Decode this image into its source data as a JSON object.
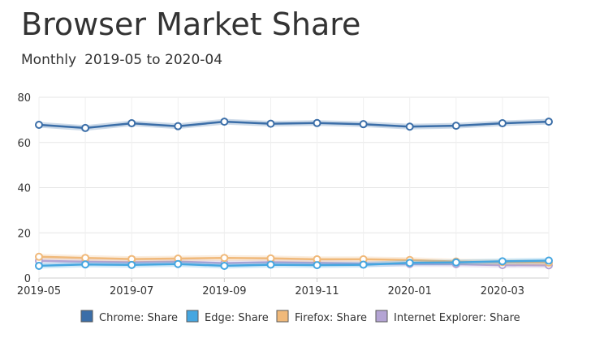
{
  "title": "Browser Market Share",
  "subtitle": {
    "period": "Monthly",
    "from": "2019-05",
    "to_word": "to",
    "to": "2020-04"
  },
  "chart_data": {
    "type": "line",
    "title": "Browser Market Share",
    "x": [
      "2019-05",
      "2019-06",
      "2019-07",
      "2019-08",
      "2019-09",
      "2019-10",
      "2019-11",
      "2019-12",
      "2020-01",
      "2020-02",
      "2020-03",
      "2020-04"
    ],
    "x_tick_labels": [
      "2019-05",
      "2019-07",
      "2019-09",
      "2019-11",
      "2020-01",
      "2020-03"
    ],
    "ylim": [
      0,
      80
    ],
    "y_ticks": [
      0,
      20,
      40,
      60,
      80
    ],
    "grid": true,
    "legend_position": "bottom",
    "series": [
      {
        "name": "Chrome: Share",
        "color": "#3b6ea8",
        "values": [
          67.8,
          66.4,
          68.5,
          67.2,
          69.2,
          68.3,
          68.6,
          68.1,
          67.0,
          67.4,
          68.5,
          69.2
        ]
      },
      {
        "name": "Edge: Share",
        "color": "#45a6e0",
        "values": [
          5.4,
          6.0,
          5.8,
          6.2,
          5.4,
          5.9,
          5.7,
          5.9,
          6.7,
          6.9,
          7.4,
          7.7
        ]
      },
      {
        "name": "Firefox: Share",
        "color": "#f0b97a",
        "values": [
          9.4,
          8.9,
          8.4,
          8.6,
          8.9,
          8.7,
          8.3,
          8.3,
          8.0,
          7.3,
          7.0,
          6.8
        ]
      },
      {
        "name": "Internet Explorer: Share",
        "color": "#b4a4d4",
        "values": [
          7.6,
          7.2,
          7.0,
          7.3,
          6.6,
          7.0,
          6.7,
          6.3,
          6.2,
          6.1,
          5.7,
          5.6
        ]
      }
    ]
  }
}
